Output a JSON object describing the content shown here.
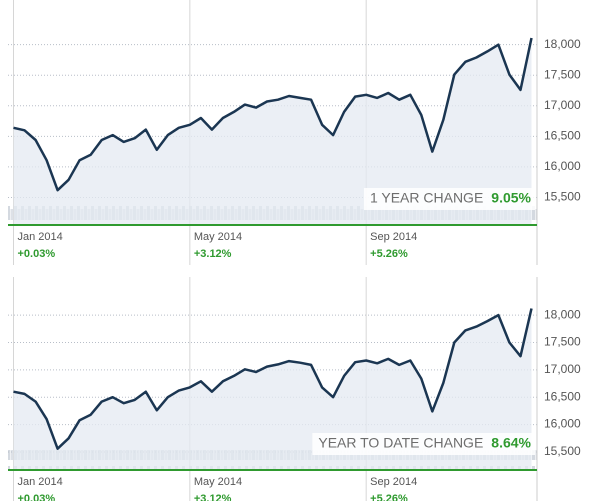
{
  "chart_data": [
    {
      "type": "line",
      "color": "#1b3652",
      "fill": "#e4e9f1",
      "categories": [
        "Jan 2014",
        null,
        null,
        null,
        null,
        null,
        null,
        null,
        null,
        null,
        null,
        null,
        null,
        null,
        null,
        null,
        "May 2014",
        null,
        null,
        null,
        null,
        null,
        null,
        null,
        null,
        null,
        null,
        null,
        null,
        null,
        null,
        null,
        "Sep 2014",
        null,
        null,
        null,
        null,
        null,
        null,
        null,
        null,
        null,
        null,
        null,
        null,
        null,
        null,
        null
      ],
      "change_labels": [
        "+0.03%",
        null,
        null,
        null,
        null,
        null,
        null,
        null,
        null,
        null,
        null,
        null,
        null,
        null,
        null,
        null,
        "+3.12%",
        null,
        null,
        null,
        null,
        null,
        null,
        null,
        null,
        null,
        null,
        null,
        null,
        null,
        null,
        null,
        "+5.26%",
        null,
        null,
        null,
        null,
        null,
        null,
        null,
        null,
        null,
        null,
        null,
        null,
        null,
        null,
        null
      ],
      "values": [
        16640,
        16600,
        16440,
        16110,
        15620,
        15790,
        16110,
        16200,
        16440,
        16520,
        16410,
        16470,
        16610,
        16280,
        16520,
        16640,
        16690,
        16800,
        16610,
        16800,
        16900,
        17020,
        16970,
        17070,
        17100,
        17160,
        17130,
        17100,
        16690,
        16520,
        16900,
        17150,
        17180,
        17130,
        17210,
        17100,
        17180,
        16850,
        16250,
        16770,
        17510,
        17720,
        17790,
        17890,
        18000,
        17510,
        17260,
        18110
      ],
      "ylim": [
        15050,
        18600
      ],
      "yticks": [
        {
          "value": 15500,
          "label": "15,500"
        },
        {
          "value": 16000,
          "label": "16,000"
        },
        {
          "value": 16500,
          "label": "16,500"
        },
        {
          "value": 17000,
          "label": "17,000"
        },
        {
          "value": 17500,
          "label": "17,500"
        },
        {
          "value": 18000,
          "label": "18,000"
        }
      ],
      "grid": true,
      "change_title": "1 YEAR CHANGE",
      "change_value": "9.05%"
    },
    {
      "type": "line",
      "color": "#1b3652",
      "fill": "#e4e9f1",
      "categories": [
        "Jan 2014",
        null,
        null,
        null,
        null,
        null,
        null,
        null,
        null,
        null,
        null,
        null,
        null,
        null,
        null,
        null,
        "May 2014",
        null,
        null,
        null,
        null,
        null,
        null,
        null,
        null,
        null,
        null,
        null,
        null,
        null,
        null,
        null,
        "Sep 2014",
        null,
        null,
        null,
        null,
        null,
        null,
        null,
        null,
        null,
        null,
        null,
        null,
        null,
        null,
        null
      ],
      "change_labels": [
        "+0.03%",
        null,
        null,
        null,
        null,
        null,
        null,
        null,
        null,
        null,
        null,
        null,
        null,
        null,
        null,
        null,
        "+3.12%",
        null,
        null,
        null,
        null,
        null,
        null,
        null,
        null,
        null,
        null,
        null,
        null,
        null,
        null,
        null,
        "+5.26%",
        null,
        null,
        null,
        null,
        null,
        null,
        null,
        null,
        null,
        null,
        null,
        null,
        null,
        null,
        null
      ],
      "values": [
        16600,
        16560,
        16420,
        16100,
        15560,
        15750,
        16080,
        16180,
        16420,
        16500,
        16390,
        16450,
        16600,
        16260,
        16500,
        16620,
        16680,
        16790,
        16600,
        16790,
        16890,
        17010,
        16960,
        17060,
        17100,
        17160,
        17130,
        17090,
        16680,
        16500,
        16890,
        17140,
        17170,
        17120,
        17200,
        17090,
        17170,
        16840,
        16240,
        16760,
        17500,
        17720,
        17790,
        17890,
        18000,
        17500,
        17250,
        18120
      ],
      "ylim": [
        15170,
        18550
      ],
      "yticks": [
        {
          "value": 15500,
          "label": "15,500"
        },
        {
          "value": 16000,
          "label": "16,000"
        },
        {
          "value": 16500,
          "label": "16,500"
        },
        {
          "value": 17000,
          "label": "17,000"
        },
        {
          "value": 17500,
          "label": "17,500"
        },
        {
          "value": 18000,
          "label": "18,000"
        }
      ],
      "grid": true,
      "change_title": "YEAR TO DATE CHANGE",
      "change_value": "8.64%"
    }
  ]
}
